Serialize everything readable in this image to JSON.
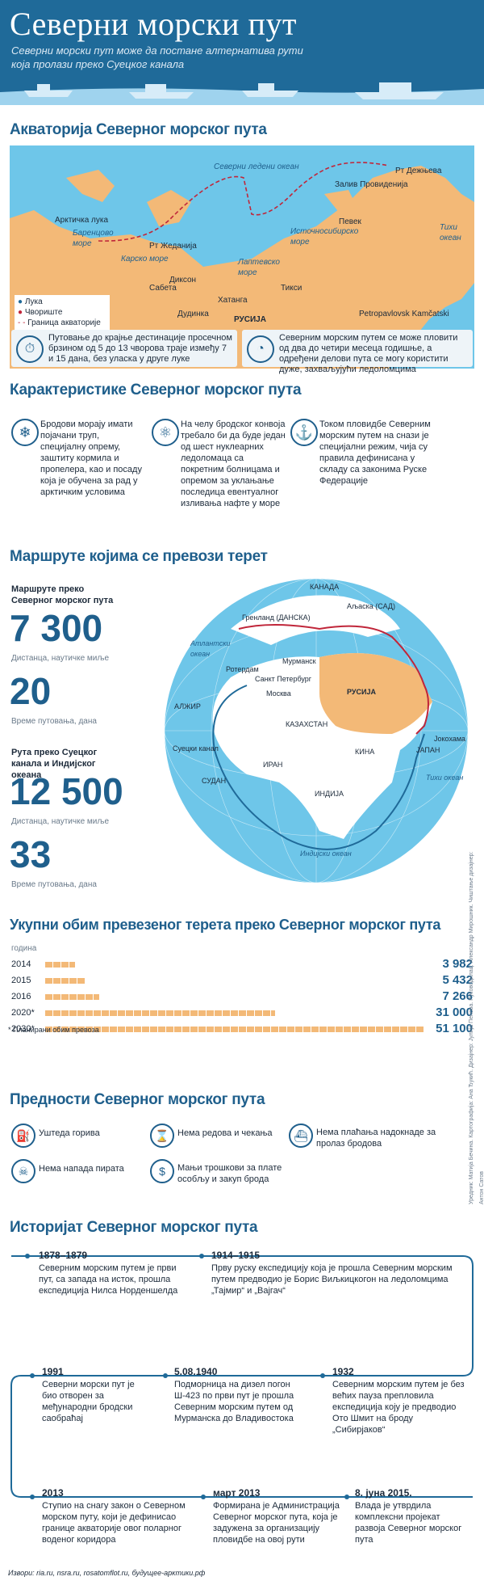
{
  "header": {
    "title": "Северни морски пут",
    "subtitle": "Северни морски пут може да постане алтернатива рути која пролази преко Суецког канала"
  },
  "section1": {
    "title": "Акваторија Северног морског пута",
    "map_labels": {
      "ocean_north": "Северни ледени океан",
      "dezhnev": "Рт Дежњева",
      "provideniya": "Залив Провиденија",
      "arctic_gate": "Арктичка лука",
      "barents": "Баренцово море",
      "zhelaniya": "Рт Жеданија",
      "kara": "Карско море",
      "east_siberian": "Источносибирско море",
      "pevek": "Певек",
      "pacific": "Тихи океан",
      "dikson": "Диксон",
      "laptev": "Лаптевско море",
      "sabeta": "Сабета",
      "khatanga": "Хатанга",
      "tiksi": "Тикси",
      "dudinka": "Дудинка",
      "russia": "РУСИЈА",
      "petropavlovsk": "Petropavlovsk Kamčatski"
    },
    "legend": {
      "port": "Лука",
      "hub": "Чвориште",
      "border": "Граница акваторије"
    },
    "note_left": "Путовање до крајње дестинације просечном брзином од 5 до 13 чворова траје између 7 и 15 дана, без уласка у друге луке",
    "note_right": "Северним морским путем се може пловити од два до четири месеца годишње, а одређени делови пута се могу користити дуже, захваљујући ледоломцима"
  },
  "section2": {
    "title": "Карактеристике Северног морског пута",
    "items": [
      "Бродови морају имати појачани труп, специјалну опрему, заштиту кормила и пропелера, као и посаду која је обучена за рад у арктичким условима",
      "На челу бродског конвоја требало би да буде један од шест нуклеарних ледоломаца са покретним болницама и опремом за уклањање последица евентуалног изливања нафте у море",
      "Током пловидбе Северним морским путем на снази је специјални режим, чија су правила дефинисана у складу са законима Руске Федерације"
    ]
  },
  "section3": {
    "title": "Маршруте којима се превози терет",
    "nsr_label": "Маршруте преко Северног морског пута",
    "nsr_distance": "7 300",
    "nsr_distance_unit": "Дистанца, наутичке миље",
    "nsr_days": "20",
    "nsr_days_unit": "Време путовања, дана",
    "suez_label": "Рута преко Суецког канала и Индијског океана",
    "suez_distance": "12 500",
    "suez_distance_unit": "Дистанца, наутичке миље",
    "suez_days": "33",
    "suez_days_unit": "Време путовања, дана",
    "globe_labels": {
      "canada": "КАНАДА",
      "alaska": "Аљаска (САД)",
      "greenland": "Гренланд (ДАНСКА)",
      "atlantic": "Атлантски океан",
      "rotterdam": "Ротердам",
      "murmansk": "Мурманск",
      "spb": "Санкт Петербург",
      "moscow": "Москва",
      "russia": "РУСИЈА",
      "algeria": "АЛЖИР",
      "kazakhstan": "КАЗАХСТАН",
      "yokohama": "Јокохама",
      "japan": "ЈАПАН",
      "suez": "Суецки канал",
      "china": "КИНА",
      "iran": "ИРАН",
      "sudan": "СУДАН",
      "india": "ИНДИЈА",
      "pacific": "Тихи океан",
      "indian": "Индијски океан"
    }
  },
  "section4": {
    "title": "Укупни обим превезеног терета преко Северног морског пута",
    "axis_label": "година",
    "footnote": "* Планирани обим превоза"
  },
  "chart_data": {
    "type": "bar",
    "title": "Укупни обим превезеног терета преко Северног морског пута",
    "xlabel": "година",
    "ylabel": "",
    "categories": [
      "2014",
      "2015",
      "2016",
      "2020*",
      "2030*"
    ],
    "values": [
      3982,
      5432,
      7266,
      31000,
      51100
    ],
    "value_labels": [
      "3 982",
      "5 432",
      "7 266",
      "31 000",
      "51 100"
    ]
  },
  "section5": {
    "title": "Предности Северног морског пута",
    "items": [
      "Уштеда горива",
      "Нема редова и чекања",
      "Нема плаћања надокнаде за пролаз бродова",
      "Нема напада пирата",
      "Мањи трошкови за плате особљу и закуп брода"
    ]
  },
  "section6": {
    "title": "Историјат Северног морског пута",
    "events": [
      {
        "date": "1878–1879",
        "text": "Северним морским путем је први пут, са запада на исток, прошла експедиција Нилса Норденшелда"
      },
      {
        "date": "1914–1915",
        "text": "Прву руску експедицију која је прошла Северним морским путем предводио је Борис Виљкицкогон на ледоломцима „Тајмир“ и „Вајгач“"
      },
      {
        "date": "1991",
        "text": "Северни морски пут је био отворен за међународни бродски саобраћај"
      },
      {
        "date": "5.08.1940",
        "text": "Подморница на дизел погон Ш-423 по први пут је прошла Северним морским путем од Мурманска до Владивостока"
      },
      {
        "date": "1932",
        "text": "Северним морским путем је без већих пауза препловила експедиција коју је предводио Ото Шмит на броду „Сибирјаков“"
      },
      {
        "date": "2013",
        "text": "Ступио на снагу закон о Северном морском путу, који је дефинисао границе акваторије овог поларног воденог коридора"
      },
      {
        "date": "март 2013",
        "text": "Формирана је Администрација Северног морског пута, која је задужена за организацију пловидбе на овој рути"
      },
      {
        "date": "8. јуна 2015.",
        "text": "Влада је утврдила комплексни пројекат развоја Северног морског пута"
      }
    ]
  },
  "footer": {
    "sources": "Извори: ria.ru, nsra.ru, rosatomflot.ru, будущее-арктики.рф",
    "credits": "Уредник: Матија Бечина. Картографија: Ана Ђукић. Дизајнер: Јулија Пенова. Руководилац: Александр Мирошник. Чиштање дизајнер: Антон Сатов"
  },
  "colors": {
    "primary": "#1f6a99",
    "title_blue": "#1f5f8c",
    "land": "#f3b977",
    "sea": "#6ec6e9",
    "route_red": "#c0263a",
    "route_blue": "#1f6a99"
  }
}
